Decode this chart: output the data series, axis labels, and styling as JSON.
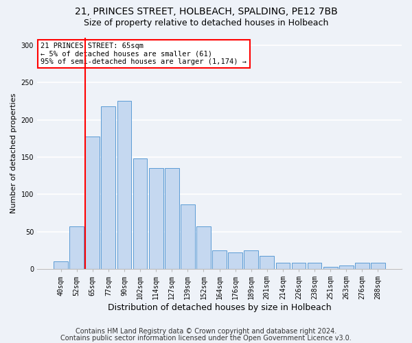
{
  "title1": "21, PRINCES STREET, HOLBEACH, SPALDING, PE12 7BB",
  "title2": "Size of property relative to detached houses in Holbeach",
  "xlabel": "Distribution of detached houses by size in Holbeach",
  "ylabel": "Number of detached properties",
  "bar_labels": [
    "40sqm",
    "52sqm",
    "65sqm",
    "77sqm",
    "90sqm",
    "102sqm",
    "114sqm",
    "127sqm",
    "139sqm",
    "152sqm",
    "164sqm",
    "176sqm",
    "189sqm",
    "201sqm",
    "214sqm",
    "226sqm",
    "238sqm",
    "251sqm",
    "263sqm",
    "276sqm",
    "288sqm"
  ],
  "bar_heights": [
    10,
    57,
    178,
    218,
    225,
    148,
    135,
    135,
    87,
    57,
    25,
    22,
    25,
    18,
    8,
    8,
    8,
    3,
    5,
    8,
    8
  ],
  "bar_color": "#c5d8f0",
  "bar_edge_color": "#5b9bd5",
  "red_line_index": 2,
  "annotation_text": "21 PRINCES STREET: 65sqm\n← 5% of detached houses are smaller (61)\n95% of semi-detached houses are larger (1,174) →",
  "annotation_box_color": "white",
  "annotation_box_edge": "red",
  "footer1": "Contains HM Land Registry data © Crown copyright and database right 2024.",
  "footer2": "Contains public sector information licensed under the Open Government Licence v3.0.",
  "ylim": [
    0,
    310
  ],
  "yticks": [
    0,
    50,
    100,
    150,
    200,
    250,
    300
  ],
  "background_color": "#eef2f8",
  "grid_color": "white",
  "title1_fontsize": 10,
  "title2_fontsize": 9,
  "xlabel_fontsize": 9,
  "ylabel_fontsize": 8,
  "annotation_fontsize": 7.5,
  "footer_fontsize": 7,
  "tick_fontsize": 7
}
